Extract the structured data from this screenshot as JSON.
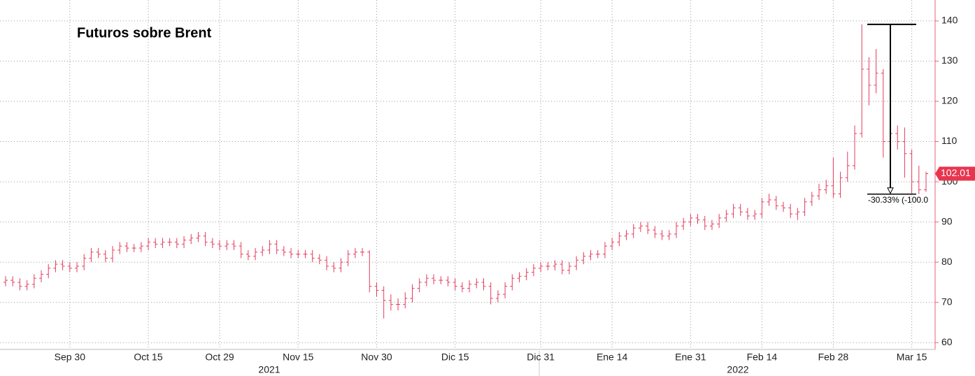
{
  "chart_data": {
    "type": "ohlc",
    "title": "Futuros sobre Brent",
    "color": "#e33b5c",
    "categories": [
      null,
      null,
      null,
      null,
      null,
      null,
      null,
      null,
      null,
      "Sep 30",
      null,
      null,
      null,
      null,
      null,
      null,
      null,
      null,
      null,
      null,
      "Oct 15",
      null,
      null,
      null,
      null,
      null,
      null,
      null,
      null,
      null,
      "Oct 29",
      null,
      null,
      null,
      null,
      null,
      null,
      null,
      null,
      null,
      null,
      "Nov 15",
      null,
      null,
      null,
      null,
      null,
      null,
      null,
      null,
      null,
      null,
      "Nov 30",
      null,
      null,
      null,
      null,
      null,
      null,
      null,
      null,
      null,
      null,
      "Dic 15",
      null,
      null,
      null,
      null,
      null,
      null,
      null,
      null,
      null,
      null,
      null,
      "Dic 31",
      null,
      null,
      null,
      null,
      null,
      null,
      null,
      null,
      null,
      "Ene 14",
      null,
      null,
      null,
      null,
      null,
      null,
      null,
      null,
      null,
      null,
      "Ene 31",
      null,
      null,
      null,
      null,
      null,
      null,
      null,
      null,
      null,
      "Feb 14",
      null,
      null,
      null,
      null,
      null,
      null,
      null,
      null,
      null,
      "Feb 28",
      null,
      null,
      null,
      null,
      null,
      null,
      null,
      null,
      null,
      null,
      "Mar 15",
      null,
      null
    ],
    "year_labels": [
      "2021",
      "2022"
    ],
    "open": [
      75,
      75.5,
      75,
      74,
      74.5,
      76,
      77,
      78.5,
      79.5,
      79,
      78.5,
      79,
      81,
      82.5,
      82,
      81,
      83,
      84,
      83.5,
      83.5,
      84,
      85,
      84.5,
      85,
      85,
      84.5,
      85.5,
      86,
      86.5,
      85,
      84.5,
      84,
      84.5,
      84,
      82,
      81.5,
      82.5,
      83,
      84.5,
      83,
      82.5,
      82,
      82,
      82,
      81,
      80.5,
      79,
      78.5,
      80,
      82,
      82.5,
      82.5,
      74,
      73,
      70.5,
      69.5,
      69.5,
      71,
      73.5,
      75,
      76,
      75.5,
      75.5,
      75,
      74,
      73.5,
      74.5,
      75,
      74,
      71,
      72,
      74,
      76,
      76.5,
      77.5,
      78.5,
      79,
      79,
      79.5,
      78,
      79,
      80.5,
      81.5,
      82,
      82,
      84,
      85,
      86.5,
      87,
      88.5,
      89,
      88,
      87,
      86.5,
      87,
      89,
      90,
      91,
      90.5,
      89,
      89.5,
      91,
      92,
      93.5,
      92.5,
      91.5,
      92,
      95,
      95.5,
      94,
      93.5,
      92,
      92.5,
      95,
      96.5,
      98,
      99,
      97,
      101,
      104,
      112,
      128,
      124,
      127,
      110,
      112,
      110,
      107,
      100,
      98
    ],
    "high": [
      76.5,
      76.5,
      76,
      75.5,
      77,
      78,
      79.5,
      80.5,
      80.5,
      80,
      80,
      82,
      83.5,
      83.5,
      83,
      84,
      85,
      85,
      84.5,
      85,
      86,
      86,
      86,
      86,
      86,
      86.5,
      87,
      87.5,
      87.5,
      86,
      85.5,
      85.5,
      85.5,
      85,
      83,
      83.5,
      84,
      85.5,
      85.5,
      84,
      83.5,
      83,
      83,
      83,
      82,
      81.5,
      80,
      81,
      83,
      83.5,
      83.5,
      83,
      75,
      74,
      72,
      71,
      72.5,
      74.5,
      76,
      77,
      77,
      76.5,
      76.5,
      76,
      75,
      75.5,
      76,
      76,
      75,
      73,
      75,
      77,
      77.5,
      78.5,
      79.5,
      80,
      80,
      80.5,
      80.5,
      80,
      81.5,
      82.5,
      83,
      83,
      85,
      86,
      87.5,
      88,
      89.5,
      90,
      90,
      89,
      88,
      88,
      90,
      91,
      92,
      92,
      91.5,
      90.5,
      92,
      93,
      94.5,
      94.5,
      93.5,
      93,
      96,
      97,
      96.5,
      95,
      94.5,
      93.5,
      96,
      97.5,
      99.5,
      100.5,
      106,
      102.5,
      107.5,
      114,
      139.13,
      131,
      133,
      128,
      119,
      114,
      113.5,
      108,
      104,
      102.5
    ],
    "low": [
      74,
      74,
      73,
      73,
      73.5,
      75,
      76,
      77.5,
      78,
      77.5,
      77.5,
      78,
      80,
      81,
      80,
      80,
      82,
      82.5,
      82.5,
      82.5,
      83,
      83.5,
      83.5,
      84,
      83.5,
      83.5,
      84.5,
      85,
      84,
      83.5,
      83,
      83,
      83,
      81,
      80.5,
      80.5,
      81.5,
      82,
      82,
      81.5,
      81,
      81,
      81,
      80,
      79.5,
      78,
      77.5,
      77.5,
      79,
      81,
      81.5,
      72.5,
      71.5,
      66,
      68,
      68,
      68.5,
      70,
      72.5,
      74,
      74.5,
      74.5,
      74,
      73,
      72.5,
      72.5,
      73.5,
      73,
      69.5,
      70,
      71,
      73,
      75,
      75.5,
      76.5,
      77.5,
      78,
      78,
      77,
      77,
      78,
      79.5,
      80.5,
      81,
      81,
      83,
      84,
      85.5,
      86,
      87.5,
      87,
      86,
      85.5,
      85.5,
      86,
      88,
      89,
      89.5,
      88,
      88,
      88.5,
      90,
      91,
      91.5,
      90.5,
      90.5,
      91,
      94,
      93,
      92.5,
      91,
      90.5,
      91.5,
      94,
      95.5,
      97,
      96,
      96,
      100,
      103,
      111,
      119,
      122,
      106,
      108.5,
      108,
      101,
      97,
      96.93,
      97.5
    ],
    "close": [
      75.5,
      75,
      74,
      74.5,
      76,
      77,
      78.5,
      79.5,
      79,
      78.5,
      79,
      81,
      82.5,
      82,
      81,
      83,
      84,
      83.5,
      83.5,
      84,
      85,
      84.5,
      85,
      85,
      84.5,
      85.5,
      86,
      86.5,
      85,
      84.5,
      84,
      84.5,
      84,
      82,
      81.5,
      82.5,
      83,
      84.5,
      83,
      82.5,
      82,
      82,
      82,
      81,
      80.5,
      79,
      78.5,
      80,
      82,
      82.5,
      82.5,
      74,
      73,
      70.5,
      69.5,
      69.5,
      71,
      73.5,
      75,
      76,
      75.5,
      75.5,
      75,
      74,
      73.5,
      74.5,
      75,
      74,
      71,
      72,
      74,
      76,
      76.5,
      77.5,
      78.5,
      79,
      79,
      79.5,
      78,
      79,
      80.5,
      81.5,
      82,
      82,
      84,
      85,
      86.5,
      87,
      88.5,
      89,
      88,
      87,
      86.5,
      87,
      89,
      90,
      91,
      90.5,
      89,
      89.5,
      91,
      92,
      93.5,
      92.5,
      91.5,
      92,
      95,
      95.5,
      94,
      93.5,
      92,
      92.5,
      95,
      96.5,
      98,
      99,
      97,
      101,
      104,
      112,
      128,
      124,
      127,
      110,
      112,
      110,
      107,
      100,
      98,
      102.01
    ],
    "last_value": 102.01,
    "ylim": [
      58.3,
      145.2
    ],
    "yticks": [
      60,
      70,
      80,
      90,
      100,
      110,
      120,
      130,
      140
    ],
    "grid": true,
    "annotation": {
      "start": 139.13,
      "end": 96.93,
      "label": "-30.33% (-100.0"
    }
  }
}
